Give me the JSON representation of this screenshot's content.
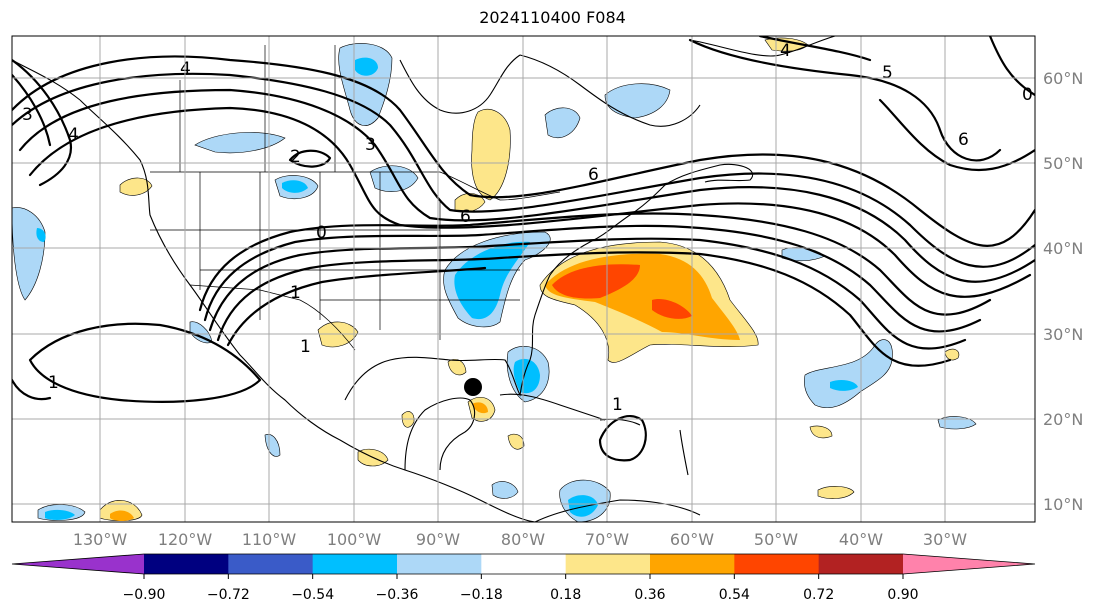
{
  "title": "2024110400 F084",
  "map": {
    "longitude_labels": [
      "130°W",
      "120°W",
      "110°W",
      "100°W",
      "90°W",
      "80°W",
      "70°W",
      "60°W",
      "50°W",
      "40°W",
      "30°W"
    ],
    "latitude_labels": [
      "60°N",
      "50°N",
      "40°N",
      "30°N",
      "20°N",
      "10°N"
    ],
    "contour_labels": [
      "4",
      "3",
      "4",
      "2",
      "3",
      "6",
      "6",
      "1",
      "1",
      "1",
      "5",
      "6",
      "1",
      "4",
      "0",
      "0"
    ],
    "marker": "storm-position-dot"
  },
  "colorbar": {
    "tick_labels": [
      "−0.90",
      "−0.72",
      "−0.54",
      "−0.36",
      "−0.18",
      "0.18",
      "0.36",
      "0.54",
      "0.72",
      "0.90"
    ],
    "colors": [
      "#9932cc",
      "#000080",
      "#3a5bc8",
      "#00bfff",
      "#add8f7",
      "#ffffff",
      "#fde68a",
      "#ffa500",
      "#ff4500",
      "#b22222",
      "#ff82ab"
    ]
  }
}
